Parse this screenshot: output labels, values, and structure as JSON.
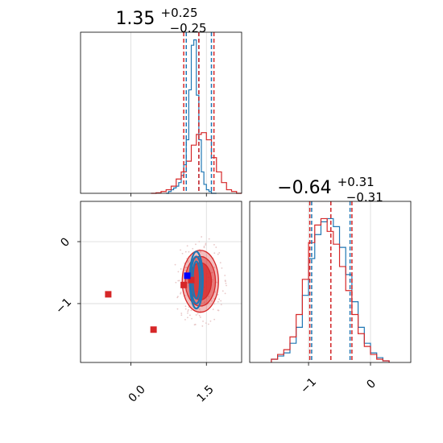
{
  "chart_data": [
    {
      "type": "histogram",
      "panel": "param1-marginal",
      "title": {
        "value": "1.35",
        "plus": "+0.25",
        "minus": "−0.25"
      },
      "xlim": [
        -1.0,
        2.2
      ],
      "grid": true,
      "series": [
        {
          "color": "#1f77b4",
          "bins": [
            0.7,
            0.75,
            0.8,
            0.85,
            0.9,
            0.95,
            1.0,
            1.05,
            1.1,
            1.15,
            1.2,
            1.25,
            1.3,
            1.35,
            1.4,
            1.45,
            1.5,
            1.55,
            1.6,
            1.65
          ],
          "values": [
            0,
            0.01,
            0.02,
            0.03,
            0.04,
            0.06,
            0.1,
            0.16,
            0.3,
            0.58,
            0.83,
            0.86,
            0.55,
            0.3,
            0.12,
            0.05,
            0.02,
            0.01,
            0,
            0
          ],
          "quantiles": [
            1.1,
            1.35,
            1.6
          ]
        },
        {
          "color": "#d62728",
          "bins": [
            0.4,
            0.5,
            0.6,
            0.7,
            0.8,
            0.9,
            1.0,
            1.1,
            1.2,
            1.3,
            1.4,
            1.5,
            1.6,
            1.7,
            1.8,
            1.9,
            2.0,
            2.1
          ],
          "values": [
            0,
            0.003,
            0.01,
            0.02,
            0.04,
            0.08,
            0.12,
            0.18,
            0.27,
            0.33,
            0.34,
            0.3,
            0.2,
            0.12,
            0.06,
            0.02,
            0.01,
            0
          ],
          "quantiles": [
            1.05,
            1.35,
            1.65
          ]
        }
      ]
    },
    {
      "type": "contour",
      "panel": "joint",
      "xlim": [
        -1.0,
        2.2
      ],
      "ylim": [
        -1.95,
        0.65
      ],
      "xticks": [
        "0.0",
        "1.5"
      ],
      "yticks": [
        "0",
        "−1"
      ],
      "grid": true,
      "contours": [
        {
          "color": "#d62728",
          "cx": 1.38,
          "cy": -0.64,
          "levels": [
            [
              0.36,
              0.5
            ],
            [
              0.3,
              0.4
            ],
            [
              0.22,
              0.3
            ]
          ]
        },
        {
          "color": "#1f77b4",
          "cx": 1.3,
          "cy": -0.62,
          "levels": [
            [
              0.13,
              0.46
            ],
            [
              0.11,
              0.38
            ],
            [
              0.07,
              0.3
            ]
          ]
        }
      ],
      "markers": [
        {
          "color": "#d62728",
          "x": -0.45,
          "y": -0.85
        },
        {
          "color": "#d62728",
          "x": 0.45,
          "y": -1.42
        },
        {
          "color": "#d62728",
          "x": 1.05,
          "y": -0.7
        },
        {
          "color": "#d62728",
          "x": 1.2,
          "y": -0.62
        },
        {
          "color": "#0000ff",
          "x": 1.12,
          "y": -0.55
        }
      ]
    },
    {
      "type": "histogram",
      "panel": "param2-marginal",
      "title": {
        "value": "−0.64",
        "plus": "+0.31",
        "minus": "−0.31"
      },
      "xlim": [
        -1.95,
        0.65
      ],
      "xticks": [
        "−1",
        "0"
      ],
      "grid": true,
      "series": [
        {
          "color": "#1f77b4",
          "bins": [
            -1.6,
            -1.5,
            -1.4,
            -1.3,
            -1.2,
            -1.1,
            -1.0,
            -0.9,
            -0.8,
            -0.7,
            -0.6,
            -0.5,
            -0.4,
            -0.3,
            -0.2,
            -0.1,
            0.0,
            0.1,
            0.2
          ],
          "values": [
            0.02,
            0.04,
            0.06,
            0.12,
            0.22,
            0.42,
            0.65,
            0.8,
            0.88,
            0.9,
            0.85,
            0.72,
            0.55,
            0.38,
            0.22,
            0.12,
            0.06,
            0.03,
            0.01
          ],
          "quantiles": [
            -0.95,
            -0.64,
            -0.33
          ]
        },
        {
          "color": "#d62728",
          "bins": [
            -1.6,
            -1.5,
            -1.4,
            -1.3,
            -1.2,
            -1.1,
            -1.0,
            -0.9,
            -0.8,
            -0.7,
            -0.6,
            -0.5,
            -0.4,
            -0.3,
            -0.2,
            -0.1,
            0.0,
            0.1,
            0.2
          ],
          "values": [
            0.02,
            0.05,
            0.08,
            0.16,
            0.3,
            0.52,
            0.75,
            0.86,
            0.9,
            0.82,
            0.74,
            0.6,
            0.45,
            0.3,
            0.18,
            0.1,
            0.05,
            0.02,
            0.01
          ],
          "quantiles": [
            -0.98,
            -0.64,
            -0.3
          ]
        }
      ]
    }
  ]
}
